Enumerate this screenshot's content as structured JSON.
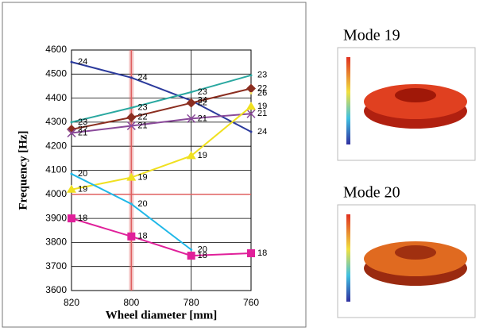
{
  "chart_data": {
    "type": "line",
    "xlabel": "Wheel diameter [mm]",
    "ylabel": "Frequency [Hz]",
    "x": [
      820,
      800,
      780,
      760
    ],
    "xlim": [
      820,
      760
    ],
    "xticks": [
      820,
      800,
      780,
      760
    ],
    "ylim": [
      3600,
      4600
    ],
    "yticks": [
      3600,
      3700,
      3800,
      3900,
      4000,
      4100,
      4200,
      4300,
      4400,
      4500,
      4600
    ],
    "grid": true,
    "reference_lines": {
      "x": 800,
      "y": 4000,
      "color": "#e06060"
    },
    "series": [
      {
        "name": "24",
        "color": "#2b3a9c",
        "marker": "none",
        "values": [
          4550,
          4485,
          4390,
          4260
        ]
      },
      {
        "name": "23",
        "color": "#2aa8a0",
        "marker": "none",
        "values": [
          4300,
          4360,
          4425,
          4495
        ]
      },
      {
        "name": "22",
        "color": "#8b2e20",
        "marker": "diamond",
        "values": [
          4270,
          4320,
          4380,
          4440
        ]
      },
      {
        "name": "21",
        "color": "#8a4a9a",
        "marker": "x",
        "values": [
          4255,
          4285,
          4315,
          4335
        ]
      },
      {
        "name": "26",
        "color": "#f2e060",
        "marker": "none",
        "values": [
          null,
          null,
          null,
          4420
        ]
      },
      {
        "name": "19",
        "color": "#f0e020",
        "marker": "triangle",
        "values": [
          4020,
          4070,
          4160,
          4365
        ]
      },
      {
        "name": "20",
        "color": "#20b8e8",
        "marker": "none",
        "values": [
          4085,
          3960,
          3770,
          null
        ]
      },
      {
        "name": "18",
        "color": "#e0209a",
        "marker": "square",
        "values": [
          3900,
          3825,
          3745,
          3755
        ]
      }
    ]
  },
  "figures": [
    {
      "title": "Mode 19"
    },
    {
      "title": "Mode 20"
    }
  ]
}
